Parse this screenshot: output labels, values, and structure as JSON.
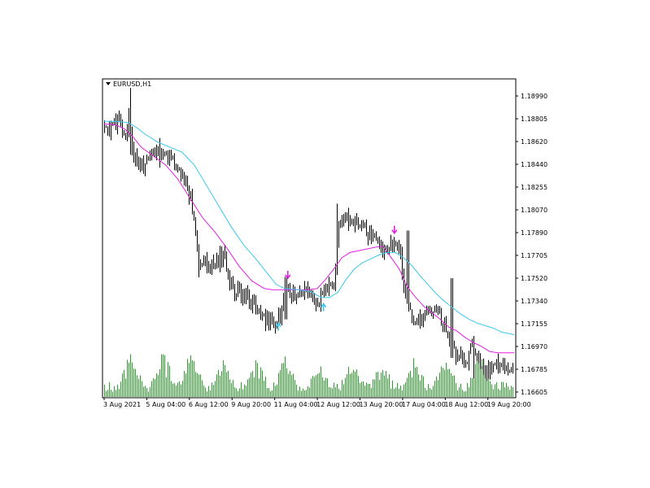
{
  "window": {
    "title": "EURUSD,H1",
    "title_icon": "dropdown-triangle-icon"
  },
  "colors": {
    "background": "#ffffff",
    "frame": "#000000",
    "candle": "#000000",
    "volume": "#2aa02a",
    "ma_fast": "#e020e0",
    "ma_slow": "#38c8f0",
    "arrow_down": "#e020e0",
    "arrow_up": "#38c8f0"
  },
  "chart_data": {
    "type": "candlestick",
    "symbol": "EURUSD",
    "timeframe": "H1",
    "y_axis": {
      "ylim": [
        1.1657,
        1.1905
      ],
      "tick_labels": [
        "1.18990",
        "1.18805",
        "1.18620",
        "1.18440",
        "1.18255",
        "1.18070",
        "1.17890",
        "1.17705",
        "1.17520",
        "1.17340",
        "1.17155",
        "1.16970",
        "1.16785",
        "1.16605"
      ]
    },
    "x_axis": {
      "xlim": [
        0,
        100
      ],
      "tick_labels": [
        "3 Aug 2021",
        "5 Aug 04:00",
        "6 Aug 12:00",
        "9 Aug 20:00",
        "11 Aug 04:00",
        "12 Aug 12:00",
        "13 Aug 20:00",
        "17 Aug 04:00",
        "18 Aug 12:00",
        "19 Aug 20:00"
      ],
      "tick_positions": [
        0,
        10.4,
        20.8,
        31.2,
        41.6,
        52.0,
        62.4,
        72.8,
        83.2,
        93.6
      ]
    },
    "price_path": [
      [
        0,
        1.1867
      ],
      [
        2,
        1.1868
      ],
      [
        4,
        1.1875
      ],
      [
        5,
        1.186
      ],
      [
        6,
        1.1875
      ],
      [
        7,
        1.1846
      ],
      [
        8,
        1.184
      ],
      [
        10,
        1.1838
      ],
      [
        12,
        1.1845
      ],
      [
        14,
        1.185
      ],
      [
        15,
        1.1843
      ],
      [
        17,
        1.184
      ],
      [
        19,
        1.1828
      ],
      [
        21,
        1.1812
      ],
      [
        22,
        1.179
      ],
      [
        23,
        1.176
      ],
      [
        25,
        1.1763
      ],
      [
        27,
        1.1762
      ],
      [
        29,
        1.1768
      ],
      [
        31,
        1.1745
      ],
      [
        33,
        1.1738
      ],
      [
        35,
        1.1735
      ],
      [
        37,
        1.1727
      ],
      [
        38,
        1.1718
      ],
      [
        40,
        1.1716
      ],
      [
        42,
        1.1713
      ],
      [
        43,
        1.1725
      ],
      [
        44,
        1.1742
      ],
      [
        46,
        1.1738
      ],
      [
        49,
        1.1743
      ],
      [
        51,
        1.1735
      ],
      [
        52,
        1.1733
      ],
      [
        54,
        1.1739
      ],
      [
        56,
        1.1745
      ],
      [
        57,
        1.179
      ],
      [
        59,
        1.1797
      ],
      [
        61,
        1.1795
      ],
      [
        63,
        1.1787
      ],
      [
        65,
        1.1782
      ],
      [
        67,
        1.1777
      ],
      [
        69,
        1.1773
      ],
      [
        71,
        1.178
      ],
      [
        72,
        1.1772
      ],
      [
        73,
        1.1745
      ],
      [
        75,
        1.1718
      ],
      [
        77,
        1.1715
      ],
      [
        79,
        1.1722
      ],
      [
        81,
        1.1726
      ],
      [
        82,
        1.1718
      ],
      [
        83,
        1.171
      ],
      [
        84,
        1.1702
      ],
      [
        85,
        1.17
      ],
      [
        86,
        1.1686
      ],
      [
        87,
        1.1694
      ],
      [
        88,
        1.168
      ],
      [
        89,
        1.1698
      ],
      [
        90,
        1.1694
      ],
      [
        92,
        1.168
      ],
      [
        94,
        1.1678
      ],
      [
        95,
        1.1683
      ],
      [
        97,
        1.1682
      ],
      [
        100,
        1.168
      ]
    ],
    "spikes": [
      {
        "x": 6.3,
        "high": 1.1898,
        "low": 1.1846
      },
      {
        "x": 13.5,
        "high": 1.1859,
        "low": 1.1836
      },
      {
        "x": 44.2,
        "high": 1.1751,
        "low": 1.1718
      },
      {
        "x": 56.8,
        "high": 1.1808,
        "low": 1.178
      },
      {
        "x": 74.0,
        "high": 1.1787,
        "low": 1.173
      },
      {
        "x": 84.7,
        "high": 1.175,
        "low": 1.1688
      },
      {
        "x": 90.2,
        "high": 1.1705,
        "low": 1.1672
      }
    ],
    "series": [
      {
        "name": "",
        "color_key": "ma_fast",
        "points": [
          [
            0,
            1.187
          ],
          [
            3,
            1.1869
          ],
          [
            5,
            1.1866
          ],
          [
            7,
            1.186
          ],
          [
            9,
            1.1852
          ],
          [
            12,
            1.1845
          ],
          [
            15,
            1.1838
          ],
          [
            18,
            1.1827
          ],
          [
            21,
            1.1812
          ],
          [
            24,
            1.1797
          ],
          [
            27,
            1.1786
          ],
          [
            30,
            1.1773
          ],
          [
            33,
            1.1759
          ],
          [
            36,
            1.1748
          ],
          [
            39,
            1.1742
          ],
          [
            41,
            1.1741
          ],
          [
            44,
            1.1741
          ],
          [
            46,
            1.1741
          ],
          [
            48,
            1.1741
          ],
          [
            50,
            1.1741
          ],
          [
            52,
            1.1742
          ],
          [
            54,
            1.1749
          ],
          [
            56,
            1.1757
          ],
          [
            58,
            1.1766
          ],
          [
            60,
            1.177
          ],
          [
            63,
            1.1772
          ],
          [
            66,
            1.1774
          ],
          [
            68,
            1.1775
          ],
          [
            70,
            1.1766
          ],
          [
            72,
            1.1757
          ],
          [
            74,
            1.1743
          ],
          [
            76,
            1.1735
          ],
          [
            78,
            1.1728
          ],
          [
            80,
            1.1723
          ],
          [
            82,
            1.1718
          ],
          [
            84,
            1.1712
          ],
          [
            86,
            1.1709
          ],
          [
            88,
            1.1704
          ],
          [
            90,
            1.17
          ],
          [
            92,
            1.1697
          ],
          [
            94,
            1.1693
          ],
          [
            96,
            1.1692
          ],
          [
            100,
            1.1692
          ]
        ]
      },
      {
        "name": "",
        "color_key": "ma_slow",
        "points": [
          [
            0,
            1.1872
          ],
          [
            3,
            1.1872
          ],
          [
            6,
            1.1871
          ],
          [
            8,
            1.1867
          ],
          [
            10,
            1.1862
          ],
          [
            13,
            1.1856
          ],
          [
            16,
            1.1852
          ],
          [
            19,
            1.1848
          ],
          [
            22,
            1.1838
          ],
          [
            25,
            1.1822
          ],
          [
            28,
            1.1806
          ],
          [
            31,
            1.179
          ],
          [
            34,
            1.1776
          ],
          [
            37,
            1.1765
          ],
          [
            40,
            1.1753
          ],
          [
            42,
            1.1745
          ],
          [
            44,
            1.1742
          ],
          [
            47,
            1.1741
          ],
          [
            50,
            1.174
          ],
          [
            53,
            1.1735
          ],
          [
            55,
            1.1735
          ],
          [
            57,
            1.1739
          ],
          [
            59,
            1.1749
          ],
          [
            61,
            1.1757
          ],
          [
            63,
            1.1762
          ],
          [
            65,
            1.1765
          ],
          [
            67,
            1.1768
          ],
          [
            69,
            1.177
          ],
          [
            71,
            1.177
          ],
          [
            73,
            1.1766
          ],
          [
            75,
            1.176
          ],
          [
            77,
            1.1752
          ],
          [
            79,
            1.1745
          ],
          [
            81,
            1.1738
          ],
          [
            83,
            1.1732
          ],
          [
            85,
            1.1727
          ],
          [
            87,
            1.1722
          ],
          [
            89,
            1.1718
          ],
          [
            91,
            1.1715
          ],
          [
            93,
            1.1713
          ],
          [
            95,
            1.1711
          ],
          [
            97,
            1.1708
          ],
          [
            100,
            1.1706
          ]
        ]
      }
    ],
    "signals": [
      {
        "type": "down",
        "x": 44.8,
        "y": 1.175,
        "color_key": "arrow_down"
      },
      {
        "type": "up",
        "x": 42.5,
        "y": 1.1715,
        "color_key": "arrow_up"
      },
      {
        "type": "up",
        "x": 53.5,
        "y": 1.173,
        "color_key": "arrow_up"
      },
      {
        "type": "down",
        "x": 70.8,
        "y": 1.1785,
        "color_key": "arrow_down"
      }
    ],
    "volume_hotspots": [
      {
        "x": 6.5,
        "v": 1.0
      },
      {
        "x": 14.2,
        "v": 0.9
      },
      {
        "x": 21.2,
        "v": 1.05
      },
      {
        "x": 29.0,
        "v": 0.65
      },
      {
        "x": 37.0,
        "v": 0.7
      },
      {
        "x": 44.0,
        "v": 0.8
      },
      {
        "x": 52.6,
        "v": 0.5
      },
      {
        "x": 60.5,
        "v": 0.55
      },
      {
        "x": 67.5,
        "v": 0.6
      },
      {
        "x": 75.5,
        "v": 0.65
      },
      {
        "x": 83.3,
        "v": 0.8
      },
      {
        "x": 91.5,
        "v": 0.9
      }
    ],
    "grid": false,
    "legend": "none"
  }
}
